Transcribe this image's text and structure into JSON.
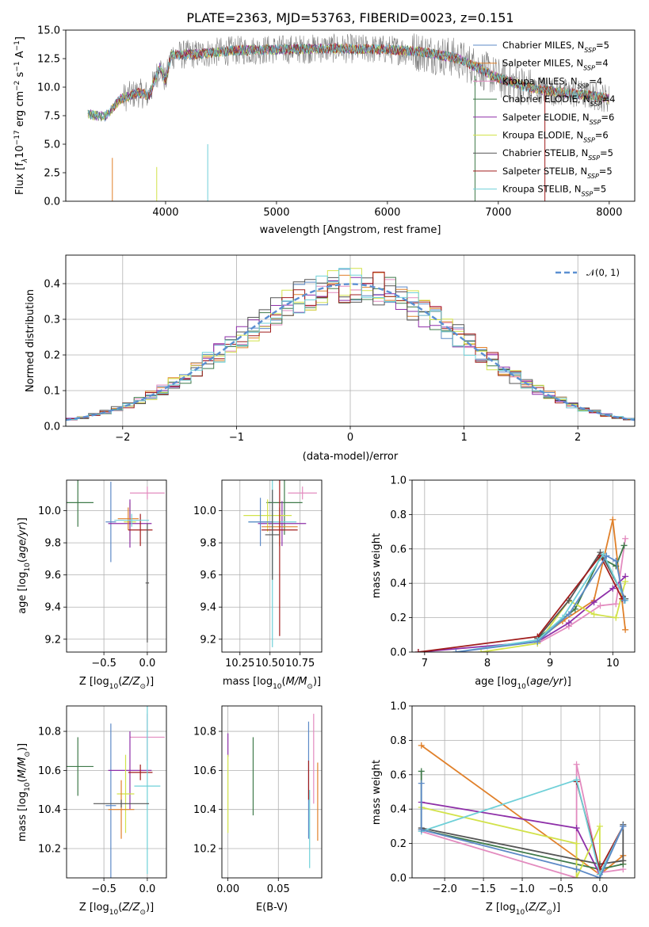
{
  "colors": {
    "Chabrier MILES": "#5d8ac7",
    "Salpeter MILES": "#e0802a",
    "Kroupa MILES": "#e38bbf",
    "Chabrier ELODIE": "#3f7a4a",
    "Salpeter ELODIE": "#8e2fa8",
    "Kroupa ELODIE": "#d2e24a",
    "Chabrier STELIB": "#555555",
    "Salpeter STELIB": "#a01c1c",
    "Kroupa STELIB": "#6fd0d8",
    "gauss": "#5b8fd1",
    "spectrum": "#808080"
  },
  "chart_data": [
    {
      "id": "spectrum",
      "type": "line",
      "title": "PLATE=2363, MJD=53763, FIBERID=0023, z=0.151",
      "xlabel": "wavelength [Angstrom, rest frame]",
      "ylabel_pre": "Flux [f",
      "ylabel_sub": "λ",
      "ylabel_mid": "10",
      "ylabel_sup1": "−17",
      "ylabel_post": " erg cm",
      "ylabel_sup2": "−2",
      "ylabel_s": " s",
      "ylabel_sup3": "−1",
      "ylabel_a": " A",
      "ylabel_sup4": "−1",
      "ylabel_end": "]",
      "xlim": [
        3100,
        8230
      ],
      "ylim": [
        0,
        15
      ],
      "xticks": [
        "4000",
        "5000",
        "6000",
        "7000",
        "8000"
      ],
      "yticks": [
        "0.0",
        "2.5",
        "5.0",
        "7.5",
        "10.0",
        "12.5",
        "15.0"
      ],
      "continuum": [
        [
          3300,
          7.6
        ],
        [
          3450,
          7.4
        ],
        [
          3600,
          9.0
        ],
        [
          3750,
          9.5
        ],
        [
          3850,
          9.3
        ],
        [
          3950,
          11.8
        ],
        [
          4000,
          10.5
        ],
        [
          4050,
          12.8
        ],
        [
          4300,
          12.9
        ],
        [
          4600,
          13.2
        ],
        [
          5000,
          13.3
        ],
        [
          5500,
          13.4
        ],
        [
          6000,
          13.3
        ],
        [
          6300,
          13.1
        ],
        [
          6600,
          12.6
        ],
        [
          6800,
          11.8
        ],
        [
          7000,
          10.8
        ],
        [
          7300,
          9.9
        ],
        [
          7600,
          9.5
        ],
        [
          7800,
          9.3
        ],
        [
          7950,
          9.1
        ],
        [
          8000,
          9.0
        ]
      ],
      "legend": [
        {
          "name": "Chabrier MILES",
          "nssp": "5"
        },
        {
          "name": "Salpeter MILES",
          "nssp": "4"
        },
        {
          "name": "Kroupa MILES",
          "nssp": "4"
        },
        {
          "name": "Chabrier ELODIE",
          "nssp": "4"
        },
        {
          "name": "Salpeter ELODIE",
          "nssp": "6"
        },
        {
          "name": "Kroupa ELODIE",
          "nssp": "6"
        },
        {
          "name": "Chabrier STELIB",
          "nssp": "5"
        },
        {
          "name": "Salpeter STELIB",
          "nssp": "5"
        },
        {
          "name": "Kroupa STELIB",
          "nssp": "5"
        }
      ],
      "legend_label": "N",
      "legend_sub": "SSP"
    },
    {
      "id": "residuals",
      "type": "line",
      "xlabel": "(data-model)/error",
      "ylabel": "Normed distribution",
      "xlim": [
        -2.5,
        2.5
      ],
      "ylim": [
        0,
        0.48
      ],
      "xticks": [
        "−2",
        "−1",
        "0",
        "1",
        "2"
      ],
      "yticks": [
        "0.0",
        "0.1",
        "0.2",
        "0.3",
        "0.4"
      ],
      "legend": "𝒩(0, 1)",
      "bin_edges": [
        -2.5,
        -2.4,
        -2.3,
        -2.2,
        -2.1,
        -2.0,
        -1.9,
        -1.8,
        -1.7,
        -1.6,
        -1.5,
        -1.4,
        -1.3,
        -1.2,
        -1.1,
        -1.0,
        -0.9,
        -0.8,
        -0.7,
        -0.6,
        -0.5,
        -0.4,
        -0.3,
        -0.2,
        -0.1,
        0.0,
        0.1,
        0.2,
        0.3,
        0.4,
        0.5,
        0.6,
        0.7,
        0.8,
        0.9,
        1.0,
        1.1,
        1.2,
        1.3,
        1.4,
        1.5,
        1.6,
        1.7,
        1.8,
        1.9,
        2.0,
        2.1,
        2.2,
        2.3,
        2.4,
        2.5
      ]
    },
    {
      "id": "age-vs-Z",
      "type": "scatter",
      "xlabel": "Z [log10(Z/Z⊙)]",
      "ylabel": "age  [log10(age/yr)]",
      "xlim": [
        -0.93,
        0.22
      ],
      "ylim": [
        9.12,
        10.19
      ],
      "xticks": [
        "−0.5",
        "0.0"
      ],
      "yticks": [
        "9.2",
        "9.4",
        "9.6",
        "9.8",
        "10.0"
      ],
      "points": [
        {
          "s": "Chabrier ELODIE",
          "x": -0.8,
          "xe": 0.18,
          "y": 10.05,
          "ye": 0.15
        },
        {
          "s": "Chabrier MILES",
          "x": -0.42,
          "xe": 0.06,
          "y": 9.93,
          "ye": 0.25
        },
        {
          "s": "Kroupa ELODIE",
          "x": -0.2,
          "xe": 0.07,
          "y": 9.93,
          "ye": 0.12
        },
        {
          "s": "Kroupa MILES",
          "x": 0.0,
          "xe": 0.2,
          "y": 10.11,
          "ye": 0.04
        },
        {
          "s": "Salpeter ELODIE",
          "x": -0.2,
          "xe": 0.25,
          "y": 9.92,
          "ye": 0.15
        },
        {
          "s": "Salpeter MILES",
          "x": -0.22,
          "xe": 0.12,
          "y": 9.95,
          "ye": 0.07
        },
        {
          "s": "Salpeter STELIB",
          "x": -0.08,
          "xe": 0.14,
          "y": 9.88,
          "ye": 0.1
        },
        {
          "s": "Kroupa STELIB",
          "x": -0.18,
          "xe": 0.2,
          "y": 9.94,
          "ye": 0.04
        },
        {
          "s": "Chabrier STELIB",
          "x": 0.0,
          "xe": 0.02,
          "y": 9.55,
          "ye": 0.37
        }
      ]
    },
    {
      "id": "age-vs-mass",
      "type": "scatter",
      "xlabel": "mass [log10(M/M⊙)]",
      "ylabel": "",
      "xlim": [
        10.1,
        10.93
      ],
      "ylim": [
        9.12,
        10.19
      ],
      "xticks": [
        "10.25",
        "10.50",
        "10.75"
      ],
      "yticks": [
        "9.2",
        "9.4",
        "9.6",
        "9.8",
        "10.0"
      ],
      "points": [
        {
          "s": "Chabrier ELODIE",
          "x": 10.62,
          "xe": 0.15,
          "y": 10.05,
          "ye": 0.2
        },
        {
          "s": "Kroupa MILES",
          "x": 10.77,
          "xe": 0.12,
          "y": 10.11,
          "ye": 0.04
        },
        {
          "s": "Salpeter ELODIE",
          "x": 10.6,
          "xe": 0.2,
          "y": 9.92,
          "ye": 0.14
        },
        {
          "s": "Kroupa ELODIE",
          "x": 10.48,
          "xe": 0.2,
          "y": 9.97,
          "ye": 0.1
        },
        {
          "s": "Salpeter MILES",
          "x": 10.58,
          "xe": 0.15,
          "y": 9.9,
          "ye": 0.12
        },
        {
          "s": "Kroupa STELIB",
          "x": 10.52,
          "xe": 0.2,
          "y": 9.93,
          "ye": 0.78
        },
        {
          "s": "Chabrier MILES",
          "x": 10.42,
          "xe": 0.1,
          "y": 9.93,
          "ye": 0.15
        },
        {
          "s": "Salpeter STELIB",
          "x": 10.58,
          "xe": 0.15,
          "y": 9.88,
          "ye": 0.66
        },
        {
          "s": "Chabrier STELIB",
          "x": 10.52,
          "xe": 0.06,
          "y": 9.85,
          "ye": 0.28
        }
      ]
    },
    {
      "id": "weight-vs-age",
      "type": "line",
      "xlabel": "age  [log10(age/yr)]",
      "ylabel": "mass weight",
      "xlim": [
        6.8,
        10.35
      ],
      "ylim": [
        0,
        1
      ],
      "xticks": [
        "7",
        "8",
        "9",
        "10"
      ],
      "yticks": [
        "0.0",
        "0.2",
        "0.4",
        "0.6",
        "0.8",
        "1.0"
      ],
      "series": [
        {
          "s": "Salpeter MILES",
          "x": [
            8.8,
            9.2,
            9.7,
            10.0,
            10.2
          ],
          "y": [
            0.07,
            0.18,
            0.3,
            0.77,
            0.13
          ]
        },
        {
          "s": "Kroupa MILES",
          "x": [
            8.8,
            9.3,
            9.8,
            10.05,
            10.2
          ],
          "y": [
            0.05,
            0.15,
            0.27,
            0.28,
            0.66
          ]
        },
        {
          "s": "Chabrier ELODIE",
          "x": [
            8.8,
            9.4,
            9.8,
            10.05,
            10.18
          ],
          "y": [
            0.08,
            0.25,
            0.55,
            0.5,
            0.62
          ]
        },
        {
          "s": "Salpeter ELODIE",
          "x": [
            6.9,
            8.8,
            9.3,
            9.7,
            10.0,
            10.2
          ],
          "y": [
            0.0,
            0.06,
            0.17,
            0.29,
            0.37,
            0.44
          ]
        },
        {
          "s": "Kroupa ELODIE",
          "x": [
            7.9,
            8.8,
            9.3,
            9.7,
            10.05,
            10.2
          ],
          "y": [
            0.0,
            0.05,
            0.3,
            0.22,
            0.2,
            0.41
          ]
        },
        {
          "s": "Chabrier STELIB",
          "x": [
            8.8,
            9.3,
            9.8,
            10.2
          ],
          "y": [
            0.08,
            0.3,
            0.58,
            0.31
          ]
        },
        {
          "s": "Salpeter STELIB",
          "x": [
            6.9,
            8.8,
            9.8,
            10.15
          ],
          "y": [
            0.0,
            0.09,
            0.56,
            0.31
          ]
        },
        {
          "s": "Kroupa STELIB",
          "x": [
            7.5,
            8.8,
            9.2,
            9.85,
            10.2
          ],
          "y": [
            0.0,
            0.07,
            0.2,
            0.57,
            0.3
          ]
        },
        {
          "s": "Chabrier MILES",
          "x": [
            7.5,
            8.8,
            9.3,
            9.9,
            10.05,
            10.18
          ],
          "y": [
            0.0,
            0.06,
            0.22,
            0.56,
            0.53,
            0.3
          ]
        }
      ]
    },
    {
      "id": "mass-vs-Z",
      "type": "scatter",
      "xlabel": "Z [log10(Z/Z⊙)]",
      "ylabel": "mass [log10(M/M⊙)]",
      "xlim": [
        -0.93,
        0.22
      ],
      "ylim": [
        10.05,
        10.93
      ],
      "xticks": [
        "−0.5",
        "0.0"
      ],
      "yticks": [
        "10.2",
        "10.4",
        "10.6",
        "10.8"
      ],
      "points": [
        {
          "s": "Chabrier ELODIE",
          "x": -0.8,
          "xe": 0.18,
          "y": 10.62,
          "ye": 0.15
        },
        {
          "s": "Chabrier MILES",
          "x": -0.42,
          "xe": 0.06,
          "y": 10.42,
          "ye": 0.42
        },
        {
          "s": "Kroupa MILES",
          "x": 0.0,
          "xe": 0.2,
          "y": 10.77,
          "ye": 0.12
        },
        {
          "s": "Salpeter ELODIE",
          "x": -0.2,
          "xe": 0.25,
          "y": 10.6,
          "ye": 0.2
        },
        {
          "s": "Kroupa ELODIE",
          "x": -0.25,
          "xe": 0.1,
          "y": 10.48,
          "ye": 0.2
        },
        {
          "s": "Salpeter MILES",
          "x": -0.3,
          "xe": 0.15,
          "y": 10.4,
          "ye": 0.15
        },
        {
          "s": "Salpeter STELIB",
          "x": -0.08,
          "xe": 0.14,
          "y": 10.59,
          "ye": 0.04
        },
        {
          "s": "Kroupa STELIB",
          "x": 0.0,
          "xe": 0.15,
          "y": 10.52,
          "ye": 0.45
        },
        {
          "s": "Chabrier STELIB",
          "x": -0.3,
          "xe": 0.32,
          "y": 10.43,
          "ye": 0.02
        }
      ]
    },
    {
      "id": "mass-vs-EBV",
      "type": "scatter",
      "xlabel": "E(B-V)",
      "ylabel": "",
      "xlim": [
        -0.006,
        0.093
      ],
      "ylim": [
        10.05,
        10.93
      ],
      "xticks": [
        "0.00",
        "0.05"
      ],
      "yticks": [
        "10.2",
        "10.4",
        "10.6",
        "10.8"
      ],
      "points": [
        {
          "s": "Salpeter ELODIE",
          "x": 0.0,
          "xe": 0,
          "y": 10.73,
          "ye": 0.06
        },
        {
          "s": "Kroupa ELODIE",
          "x": 0.0,
          "xe": 0,
          "y": 10.48,
          "ye": 0.2
        },
        {
          "s": "Chabrier ELODIE",
          "x": 0.025,
          "xe": 0,
          "y": 10.57,
          "ye": 0.2
        },
        {
          "s": "Chabrier MILES",
          "x": 0.08,
          "xe": 0,
          "y": 10.55,
          "ye": 0.3
        },
        {
          "s": "Salpeter STELIB",
          "x": 0.08,
          "xe": 0,
          "y": 10.55,
          "ye": 0.1
        },
        {
          "s": "Kroupa STELIB",
          "x": 0.081,
          "xe": 0,
          "y": 10.3,
          "ye": 0.2
        },
        {
          "s": "Kroupa MILES",
          "x": 0.085,
          "xe": 0,
          "y": 10.66,
          "ye": 0.23
        },
        {
          "s": "Salpeter MILES",
          "x": 0.089,
          "xe": 0,
          "y": 10.44,
          "ye": 0.2
        }
      ]
    },
    {
      "id": "weight-vs-Z",
      "type": "line",
      "xlabel": "Z [log10(Z/Z⊙)]",
      "ylabel": "mass weight",
      "xlim": [
        -2.42,
        0.45
      ],
      "ylim": [
        0,
        1
      ],
      "xticks": [
        "−2.0",
        "−1.5",
        "−1.0",
        "−0.5",
        "0.0"
      ],
      "yticks": [
        "0.0",
        "0.2",
        "0.4",
        "0.6",
        "0.8",
        "1.0"
      ],
      "series": [
        {
          "s": "Salpeter MILES",
          "x": [
            -2.3,
            0.0,
            0.3,
            0.3
          ],
          "y": [
            0.77,
            0.02,
            0.13,
            0.08
          ]
        },
        {
          "s": "Kroupa MILES",
          "x": [
            -2.3,
            -0.3,
            -0.3,
            0.0,
            0.3
          ],
          "y": [
            0.27,
            0.0,
            0.66,
            0.03,
            0.05
          ]
        },
        {
          "s": "Chabrier ELODIE",
          "x": [
            -2.3,
            -2.3,
            0.0,
            0.3
          ],
          "y": [
            0.62,
            0.28,
            0.05,
            0.08
          ]
        },
        {
          "s": "Salpeter ELODIE",
          "x": [
            -2.3,
            -0.3,
            0.0,
            0.3
          ],
          "y": [
            0.44,
            0.29,
            0.02,
            0.3
          ]
        },
        {
          "s": "Kroupa ELODIE",
          "x": [
            -2.3,
            -0.3,
            -0.3,
            0.0,
            0.0
          ],
          "y": [
            0.41,
            0.2,
            0.0,
            0.3,
            0.0
          ]
        },
        {
          "s": "Chabrier STELIB",
          "x": [
            -2.3,
            0.0,
            0.3,
            0.3
          ],
          "y": [
            0.29,
            0.08,
            0.1,
            0.31
          ]
        },
        {
          "s": "Salpeter STELIB",
          "x": [
            -0.3,
            0.0,
            0.3
          ],
          "y": [
            0.56,
            0.05,
            0.3
          ]
        },
        {
          "s": "Kroupa STELIB",
          "x": [
            -2.3,
            -0.3,
            0.0,
            0.3
          ],
          "y": [
            0.27,
            0.57,
            0.02,
            0.3
          ]
        },
        {
          "s": "Chabrier MILES",
          "x": [
            -2.3,
            -2.3,
            -0.3,
            0.0,
            0.3
          ],
          "y": [
            0.55,
            0.28,
            0.05,
            0.0,
            0.3
          ]
        }
      ]
    }
  ]
}
